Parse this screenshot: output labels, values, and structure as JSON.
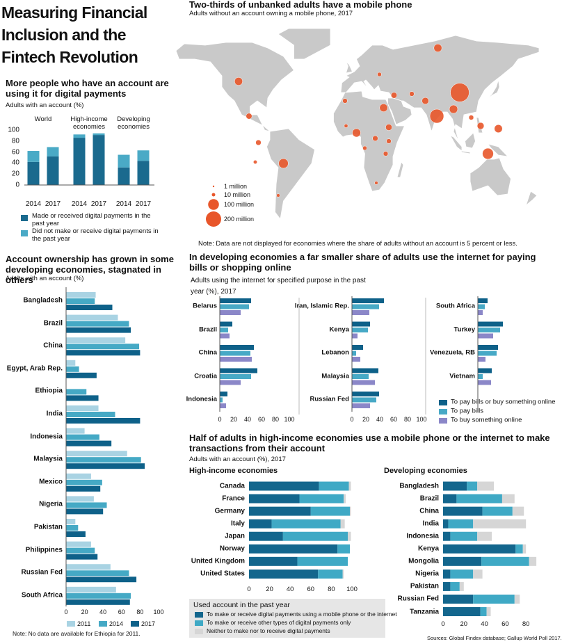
{
  "title": "Measuring Financial Inclusion and the Fintech Revolution",
  "sources": "Sources:    Global Findex database; Gallup World Poll 2017.",
  "chart_data": [
    {
      "type": "stacked-bar",
      "title": "More people who have an account are using it for digital payments",
      "subtitle": "Adults with an account (%)",
      "groups": [
        "World",
        "High-income economies",
        "Developing economies"
      ],
      "categories": [
        "2014",
        "2017",
        "2014",
        "2017",
        "2014",
        "2017"
      ],
      "series": [
        {
          "name": "Made or received digital payments in the past year",
          "color": "#1a6a8e",
          "values": [
            42,
            52,
            86,
            91,
            32,
            44
          ]
        },
        {
          "name": "Did not make or receive digital payments in the past year",
          "color": "#4aaac6",
          "values": [
            20,
            17,
            6,
            3,
            23,
            19
          ]
        }
      ],
      "ylim": [
        0,
        100
      ],
      "yticks": [
        0,
        20,
        40,
        60,
        80,
        100
      ]
    },
    {
      "type": "grouped-hbar",
      "title": "Account ownership has grown in some developing economies, stagnated in others",
      "subtitle": "Adults with an account (%)",
      "categories": [
        "Bangladesh",
        "Brazil",
        "China",
        "Egypt, Arab Rep.",
        "Ethiopia",
        "India",
        "Indonesia",
        "Malaysia",
        "Mexico",
        "Nigeria",
        "Pakistan",
        "Philippines",
        "Russian Fed",
        "South Africa"
      ],
      "series": [
        {
          "name": "2011",
          "color": "#a9d3e3",
          "values": [
            32,
            56,
            64,
            10,
            null,
            35,
            20,
            66,
            27,
            30,
            10,
            27,
            48,
            54
          ]
        },
        {
          "name": "2014",
          "color": "#45a9c5",
          "values": [
            31,
            68,
            79,
            14,
            22,
            53,
            36,
            81,
            39,
            44,
            13,
            31,
            68,
            70
          ]
        },
        {
          "name": "2017",
          "color": "#0e6189",
          "values": [
            50,
            70,
            80,
            33,
            35,
            80,
            49,
            85,
            37,
            40,
            21,
            34,
            76,
            69
          ]
        }
      ],
      "xlim": [
        0,
        100
      ],
      "xticks": [
        0,
        20,
        40,
        60,
        80,
        100
      ],
      "note": "Note: No data are available for Ethiopia for 2011."
    },
    {
      "type": "bubble-map",
      "title": "Two-thirds of unbanked adults have a mobile phone",
      "subtitle": "Adults without an account owning a mobile phone, 2017",
      "color": "#e8562a",
      "points": [
        {
          "lon": 104,
          "lat": 36,
          "value": 300
        },
        {
          "lon": 82,
          "lat": 19,
          "value": 165
        },
        {
          "lon": 131,
          "lat": -8,
          "value": 105
        },
        {
          "lon": 98,
          "lat": 24,
          "value": 60
        },
        {
          "lon": 71,
          "lat": 30,
          "value": 40
        },
        {
          "lon": 5,
          "lat": 7,
          "value": 60
        },
        {
          "lon": 31,
          "lat": 25,
          "value": 55
        },
        {
          "lon": 141,
          "lat": 10,
          "value": 55
        },
        {
          "lon": 124,
          "lat": 12,
          "value": 40
        },
        {
          "lon": -65,
          "lat": -15,
          "value": 80
        },
        {
          "lon": -108,
          "lat": 44,
          "value": 55
        },
        {
          "lon": 83,
          "lat": 68,
          "value": 55
        },
        {
          "lon": -89,
          "lat": 0,
          "value": 25
        },
        {
          "lon": -92,
          "lat": -14,
          "value": 12
        },
        {
          "lon": -70,
          "lat": -38,
          "value": 10
        },
        {
          "lon": -6,
          "lat": 30,
          "value": 20
        },
        {
          "lon": 36,
          "lat": 1,
          "value": 20
        },
        {
          "lon": 33,
          "lat": -8,
          "value": 20
        },
        {
          "lon": 24,
          "lat": -29,
          "value": 10
        },
        {
          "lon": 115,
          "lat": 18,
          "value": 20
        },
        {
          "lon": 27,
          "lat": 49,
          "value": 15
        },
        {
          "lon": 41,
          "lat": 34,
          "value": 30
        },
        {
          "lon": 36,
          "lat": 11,
          "value": 35
        },
        {
          "lon": -98,
          "lat": 19,
          "value": 30
        },
        {
          "lon": 58,
          "lat": 35,
          "value": 20
        },
        {
          "lon": -5,
          "lat": 12,
          "value": 12
        },
        {
          "lon": 13,
          "lat": -4,
          "value": 15
        },
        {
          "lon": 23,
          "lat": 3,
          "value": 25
        }
      ],
      "size_legend": [
        {
          "value": 1,
          "label": "1 million"
        },
        {
          "value": 10,
          "label": "10 million"
        },
        {
          "value": 100,
          "label": "100 million"
        },
        {
          "value": 200,
          "label": "200 million"
        }
      ],
      "note": "Note: Data are not displayed for economies where the share of adults without an account is 5 percent or less."
    },
    {
      "type": "grouped-hbar-panels",
      "title": "In developing economies a far smaller share of adults use the internet for paying bills or shopping online",
      "subtitle": "Adults using the internet for specified purpose in the past year (%), 2017",
      "categories": [
        [
          "Belarus",
          "Brazil",
          "China",
          "Croatia",
          "Indonesia"
        ],
        [
          "Iran, Islamic Rep.",
          "Kenya",
          "Lebanon",
          "Malaysia",
          "Russian Fed"
        ],
        [
          "South Africa",
          "Turkey",
          "Venezuela, RB",
          "Vietnam"
        ]
      ],
      "series": [
        {
          "name": "To pay bills or buy something online",
          "color": "#0e6189",
          "values": [
            [
              45,
              18,
              49,
              54,
              11
            ],
            [
              46,
              26,
              16,
              38,
              39
            ],
            [
              14,
              36,
              29,
              20
            ]
          ]
        },
        {
          "name": "To pay bills",
          "color": "#47a9c6",
          "values": [
            [
              42,
              12,
              44,
              45,
              4
            ],
            [
              39,
              23,
              6,
              24,
              35
            ],
            [
              10,
              32,
              27,
              7
            ]
          ]
        },
        {
          "name": "To buy something online",
          "color": "#8b87c8",
          "values": [
            [
              30,
              14,
              46,
              30,
              9
            ],
            [
              25,
              8,
              12,
              33,
              26
            ],
            [
              7,
              22,
              11,
              19
            ]
          ]
        }
      ],
      "xlim": [
        0,
        100
      ],
      "xticks": [
        0,
        20,
        40,
        60,
        80,
        100
      ]
    },
    {
      "type": "stacked-hbar-panels",
      "title": "Half of adults in high-income economies use a mobile phone or the internet to make transactions from their account",
      "subtitle": "Adults with an account (%), 2017",
      "panel_titles": [
        "High-income economies",
        "Developing economies"
      ],
      "categories": [
        [
          "Canada",
          "France",
          "Germany",
          "Italy",
          "Japan",
          "Norway",
          "United Kingdom",
          "United States"
        ],
        [
          "Bangladesh",
          "Brazil",
          "China",
          "India",
          "Indonesia",
          "Kenya",
          "Mongolia",
          "Nigeria",
          "Pakistan",
          "Russian Fed",
          "Tanzania"
        ]
      ],
      "legend_title": "Used account in the past year",
      "series": [
        {
          "name": "To make or receive digital payments using a mobile phone or the internet",
          "color": "#13668d",
          "values": [
            [
              68,
              49,
              60,
              22,
              33,
              86,
              47,
              67
            ],
            [
              23,
              13,
              38,
              5,
              7,
              70,
              37,
              7,
              7,
              29,
              36
            ]
          ]
        },
        {
          "name": "To make or receive other types of digital payments only",
          "color": "#3fa9c5",
          "values": [
            [
              29,
              43,
              38,
              67,
              63,
              12,
              49,
              24
            ],
            [
              10,
              44,
              29,
              24,
              26,
              7,
              46,
              22,
              9,
              40,
              6
            ]
          ]
        },
        {
          "name": "Neither to make nor to receive digital payments",
          "color": "#d6d6d6",
          "values": [
            [
              2,
              2,
              1,
              4,
              3,
              0,
              0,
              1
            ],
            [
              16,
              12,
              11,
              51,
              14,
              3,
              7,
              9,
              4,
              5,
              4
            ]
          ]
        }
      ],
      "xlim": [
        0,
        100
      ],
      "xticks": [
        [
          0,
          20,
          40,
          60,
          80,
          100
        ],
        [
          0,
          20,
          40,
          60,
          80
        ]
      ]
    }
  ]
}
